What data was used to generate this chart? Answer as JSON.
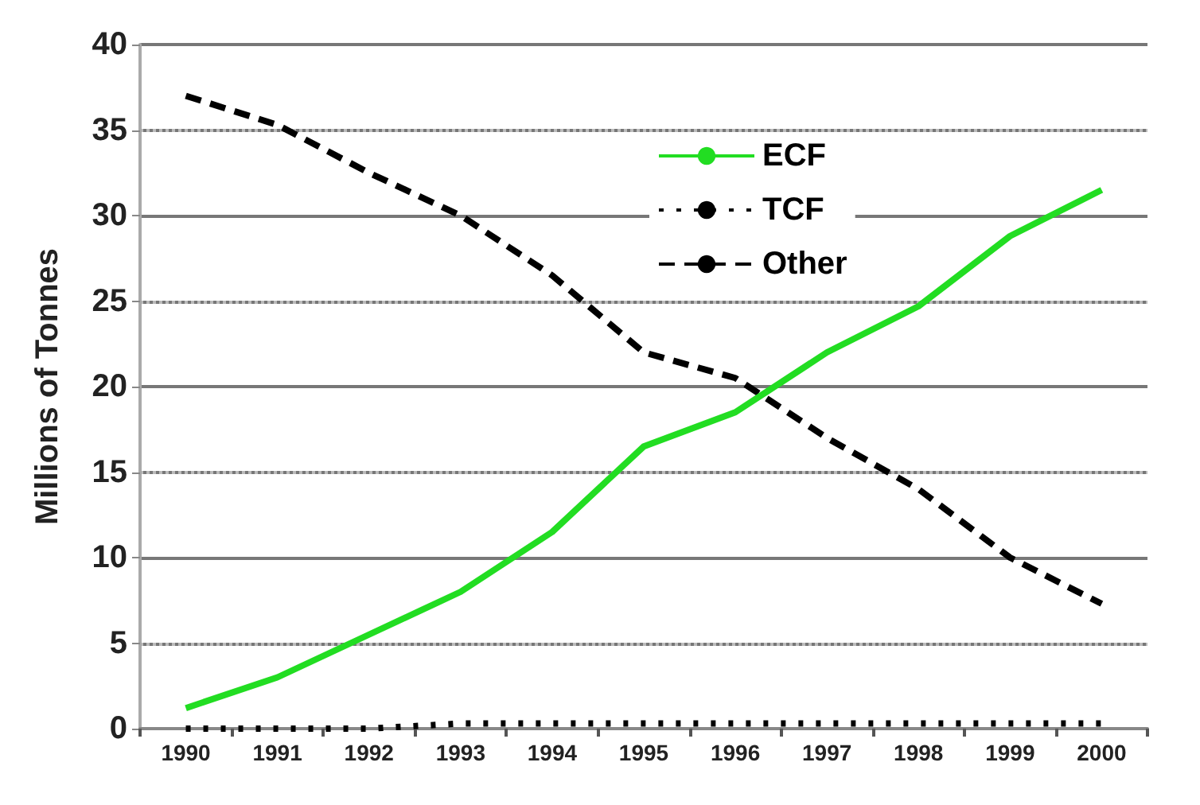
{
  "chart_data": {
    "type": "line",
    "ylabel": "Millions of Tonnes",
    "categories": [
      "1990",
      "1991",
      "1992",
      "1993",
      "1994",
      "1995",
      "1996",
      "1997",
      "1998",
      "1999",
      "2000"
    ],
    "series": [
      {
        "name": "ECF",
        "color": "#22dd22",
        "line_style": "solid",
        "values": [
          1.2,
          3,
          5.5,
          8,
          11.5,
          16.5,
          18.5,
          22,
          24.7,
          28.8,
          31.5
        ]
      },
      {
        "name": "TCF",
        "color": "#000000",
        "line_style": "dotted",
        "values": [
          0,
          0,
          0,
          0.3,
          0.3,
          0.3,
          0.3,
          0.3,
          0.3,
          0.3,
          0.3
        ]
      },
      {
        "name": "Other",
        "color": "#000000",
        "line_style": "dashed",
        "values": [
          37,
          35.3,
          32.5,
          30,
          26.5,
          22,
          20.5,
          17,
          14,
          10,
          7.3
        ]
      }
    ],
    "ylim": [
      0,
      40
    ],
    "yticks": [
      0,
      5,
      10,
      15,
      20,
      25,
      30,
      35,
      40
    ],
    "grid": "y",
    "legend": "top",
    "marker": "none"
  }
}
